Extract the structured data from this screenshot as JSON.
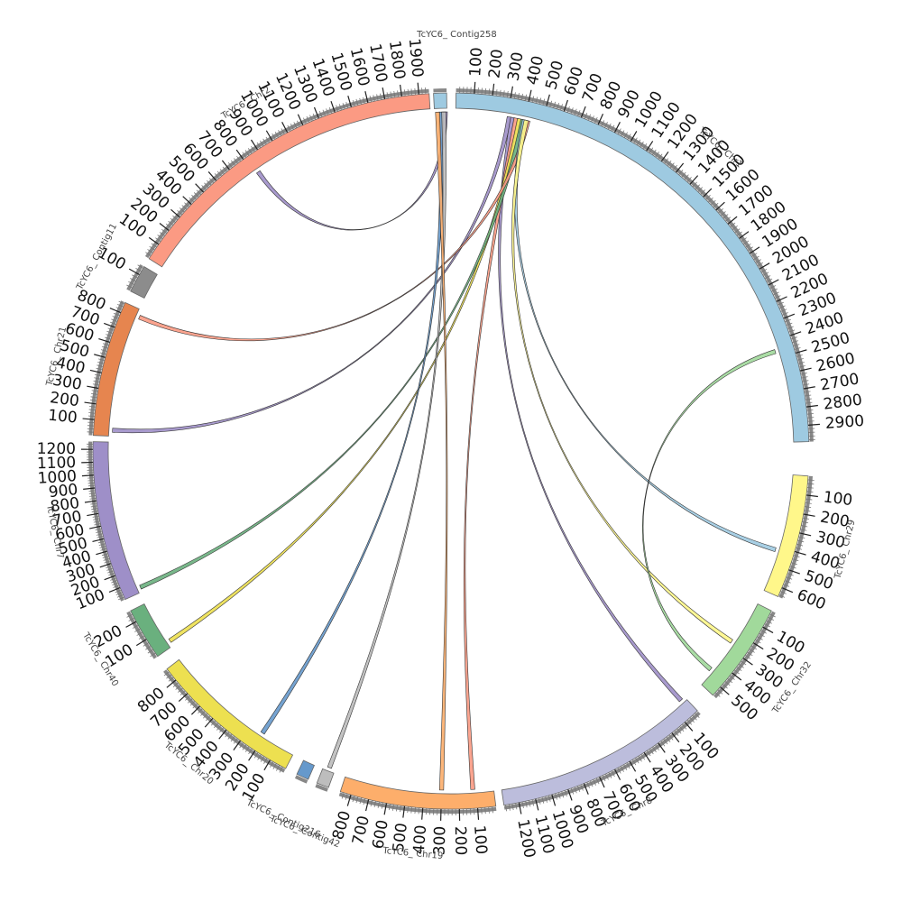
{
  "chart_data": {
    "type": "chord",
    "gap_deg": 1.3,
    "chromosomes": [
      {
        "name": "TcYC6_ Chr1",
        "length": 2990,
        "color": "#9ecae1",
        "start_deg": 0.8,
        "end_deg": 88.5
      },
      {
        "name": "TcYC6_ Chr29",
        "length": 650,
        "color": "#fff78a",
        "start_deg": 94.0,
        "end_deg": 114.0
      },
      {
        "name": "TcYC6_ Chr32",
        "length": 560,
        "color": "#a1d99b",
        "start_deg": 116.5,
        "end_deg": 133.0
      },
      {
        "name": "TcYC6_ Chr8",
        "length": 1290,
        "color": "#bcbddc",
        "start_deg": 136.5,
        "end_deg": 171.5
      },
      {
        "name": "TcYC6_ Chr19",
        "length": 860,
        "color": "#fdae6b",
        "start_deg": 172.8,
        "end_deg": 198.0
      },
      {
        "name": "TcYC6_ Contig42",
        "length": 60,
        "color": "#bdbdbd",
        "start_deg": 200.0,
        "end_deg": 202.0
      },
      {
        "name": "TcYC6_ Contig216",
        "length": 70,
        "color": "#6699cc",
        "start_deg": 203.5,
        "end_deg": 205.5
      },
      {
        "name": "TcYC6_ Chr20",
        "length": 880,
        "color": "#ede050",
        "start_deg": 207.5,
        "end_deg": 232.5
      },
      {
        "name": "TcYC6_ Chr40",
        "length": 260,
        "color": "#6ab07e",
        "start_deg": 235.0,
        "end_deg": 243.5
      },
      {
        "name": "TcYC6_ Chr7",
        "length": 1260,
        "color": "#9e8fc8",
        "start_deg": 245.5,
        "end_deg": 271.5
      },
      {
        "name": "TcYC6_ Chr21",
        "length": 870,
        "color": "#e6854f",
        "start_deg": 272.5,
        "end_deg": 294.5
      },
      {
        "name": "TcYC6_ Contig11",
        "length": 150,
        "color": "#8c8c8c",
        "start_deg": 296.5,
        "end_deg": 301.0
      },
      {
        "name": "TcYC6_ Chr2",
        "length": 1960,
        "color": "#fb9a83",
        "start_deg": 302.5,
        "end_deg": 356.5
      },
      {
        "name": "TcYC6_ Contig258",
        "length": 40,
        "color": "#9ecae1",
        "start_deg": 357.2,
        "end_deg": 359.3
      }
    ],
    "ticks": [
      {
        "chr": 0,
        "labels": [
          "100",
          "200",
          "300",
          "400",
          "500",
          "600",
          "700",
          "800",
          "900",
          "1000",
          "1100",
          "1200",
          "1300",
          "1400",
          "1500",
          "1600",
          "1700",
          "1800",
          "1900",
          "2000",
          "2100",
          "2200",
          "2300",
          "2400",
          "2500",
          "2600",
          "2700",
          "2800",
          "2900"
        ]
      },
      {
        "chr": 1,
        "labels": [
          "100",
          "200",
          "300",
          "400",
          "500",
          "600"
        ]
      },
      {
        "chr": 2,
        "labels": [
          "100",
          "200",
          "300",
          "400",
          "500"
        ]
      },
      {
        "chr": 3,
        "labels": [
          "100",
          "200",
          "300",
          "400",
          "500",
          "600",
          "700",
          "800",
          "900",
          "1000",
          "1100",
          "1200"
        ]
      },
      {
        "chr": 4,
        "labels": [
          "100",
          "200",
          "300",
          "400",
          "500",
          "600",
          "700",
          "800"
        ]
      },
      {
        "chr": 7,
        "labels": [
          "100",
          "200",
          "300",
          "400",
          "500",
          "600",
          "700",
          "800"
        ]
      },
      {
        "chr": 8,
        "labels": [
          "100",
          "200"
        ]
      },
      {
        "chr": 9,
        "labels": [
          "100",
          "200",
          "300",
          "400",
          "500",
          "600",
          "700",
          "800",
          "900",
          "1000",
          "1100",
          "1200"
        ]
      },
      {
        "chr": 10,
        "labels": [
          "100",
          "200",
          "300",
          "400",
          "500",
          "600",
          "700",
          "800"
        ]
      },
      {
        "chr": 11,
        "labels": [
          "100"
        ]
      },
      {
        "chr": 12,
        "labels": [
          "100",
          "200",
          "300",
          "400",
          "500",
          "600",
          "700",
          "800",
          "900",
          "1000",
          "1100",
          "1200",
          "1300",
          "1400",
          "1500",
          "1600",
          "1700",
          "1800",
          "1900"
        ]
      }
    ],
    "links": [
      {
        "a": 0,
        "a_pos": 310,
        "b": 10,
        "b_pos": 40,
        "color": "#9e8fc8"
      },
      {
        "a": 0,
        "a_pos": 330,
        "b": 3,
        "b_pos": 30,
        "color": "#9e8fc8"
      },
      {
        "a": 0,
        "a_pos": 350,
        "b": 4,
        "b_pos": 120,
        "color": "#fb9a83"
      },
      {
        "a": 0,
        "a_pos": 370,
        "b": 8,
        "b_pos": 30,
        "color": "#ede050"
      },
      {
        "a": 0,
        "a_pos": 390,
        "b": 9,
        "b_pos": 40,
        "color": "#6ab07e"
      },
      {
        "a": 0,
        "a_pos": 420,
        "b": 10,
        "b_pos": 820,
        "color": "#fb9a83"
      },
      {
        "a": 0,
        "a_pos": 400,
        "b": 1,
        "b_pos": 420,
        "color": "#9ecae1"
      },
      {
        "a": 0,
        "a_pos": 410,
        "b": 2,
        "b_pos": 260,
        "color": "#fff78a"
      },
      {
        "a": 0,
        "a_pos": 2460,
        "b": 2,
        "b_pos": 460,
        "color": "#a1d99b"
      },
      {
        "a": 12,
        "a_pos": 830,
        "b": 13,
        "b_pos": 35,
        "color": "#9e8fc8"
      },
      {
        "a": 13,
        "a_pos": 20,
        "b": 7,
        "b_pos": 220,
        "color": "#6699cc"
      },
      {
        "a": 13,
        "a_pos": 30,
        "b": 5,
        "b_pos": 30,
        "color": "#bdbdbd"
      },
      {
        "a": 13,
        "a_pos": 10,
        "b": 4,
        "b_pos": 300,
        "color": "#fdae6b"
      }
    ]
  }
}
